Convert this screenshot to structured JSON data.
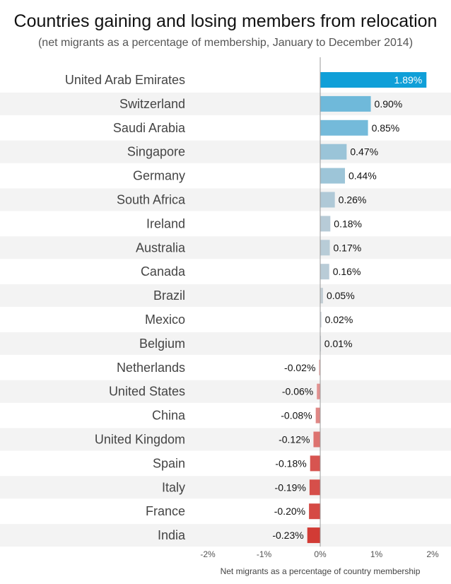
{
  "chart_data": {
    "type": "bar",
    "orientation": "horizontal",
    "title": "Countries gaining and losing members from relocation",
    "subtitle": "(net migrants as a percentage of membership, January to December 2014)",
    "xlabel": "Net migrants as a percentage of country membership",
    "ylabel": "",
    "xlim": [
      -2,
      2
    ],
    "xticks": [
      -2,
      -1,
      0,
      1,
      2
    ],
    "xtick_labels": [
      "-2%",
      "-1%",
      "0%",
      "1%",
      "2%"
    ],
    "grid": false,
    "categories": [
      "United Arab Emirates",
      "Switzerland",
      "Saudi Arabia",
      "Singapore",
      "Germany",
      "South Africa",
      "Ireland",
      "Australia",
      "Canada",
      "Brazil",
      "Mexico",
      "Belgium",
      "Netherlands",
      "United States",
      "China",
      "United Kingdom",
      "Spain",
      "Italy",
      "France",
      "India"
    ],
    "values": [
      1.89,
      0.9,
      0.85,
      0.47,
      0.44,
      0.26,
      0.18,
      0.17,
      0.16,
      0.05,
      0.02,
      0.01,
      -0.02,
      -0.06,
      -0.08,
      -0.12,
      -0.18,
      -0.19,
      -0.2,
      -0.23
    ],
    "value_labels": [
      "1.89%",
      "0.90%",
      "0.85%",
      "0.47%",
      "0.44%",
      "0.26%",
      "0.18%",
      "0.17%",
      "0.16%",
      "0.05%",
      "0.02%",
      "0.01%",
      "-0.02%",
      "-0.06%",
      "-0.08%",
      "-0.12%",
      "-0.18%",
      "-0.19%",
      "-0.20%",
      "-0.23%"
    ],
    "colors": {
      "positive_max": "#0f9fd8",
      "positive_high": "#6fb9da",
      "positive_low": "#c9d0d6",
      "negative_low": "#e8b0b0",
      "negative_high": "#d23b35",
      "row_stripe": "#f3f3f3",
      "zero_line": "#999999"
    }
  }
}
